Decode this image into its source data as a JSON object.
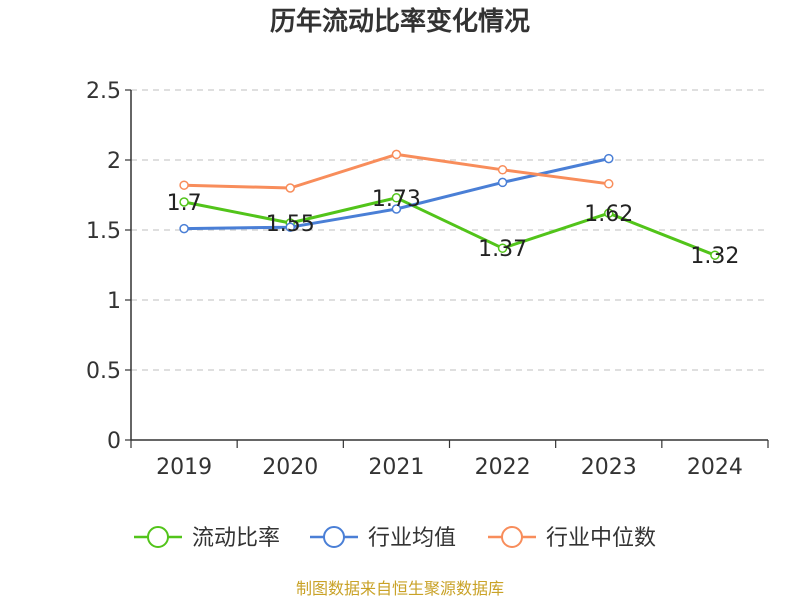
{
  "chart_data": {
    "type": "line",
    "title": "历年流动比率变化情况",
    "categories": [
      "2019",
      "2020",
      "2021",
      "2022",
      "2023",
      "2024"
    ],
    "ylim": [
      0,
      2.5
    ],
    "yticks": [
      0,
      0.5,
      1,
      1.5,
      2,
      2.5
    ],
    "ytick_labels": [
      "0",
      "0.5",
      "1",
      "1.5",
      "2",
      "2.5"
    ],
    "grid": true,
    "legend_position": "bottom",
    "series": [
      {
        "name": "流动比率",
        "color": "#52c41a",
        "values": [
          1.7,
          1.55,
          1.73,
          1.37,
          1.62,
          1.32
        ],
        "labels": [
          "1.7",
          "1.55",
          "1.73",
          "1.37",
          "1.62",
          "1.32"
        ]
      },
      {
        "name": "行业均值",
        "color": "#4a7fd6",
        "values": [
          1.51,
          1.52,
          1.65,
          1.84,
          2.01,
          null
        ],
        "labels": []
      },
      {
        "name": "行业中位数",
        "color": "#f88d5b",
        "values": [
          1.82,
          1.8,
          2.04,
          1.93,
          1.83,
          null
        ],
        "labels": []
      }
    ],
    "source": "制图数据来自恒生聚源数据库",
    "source_color": "#c9a227"
  }
}
